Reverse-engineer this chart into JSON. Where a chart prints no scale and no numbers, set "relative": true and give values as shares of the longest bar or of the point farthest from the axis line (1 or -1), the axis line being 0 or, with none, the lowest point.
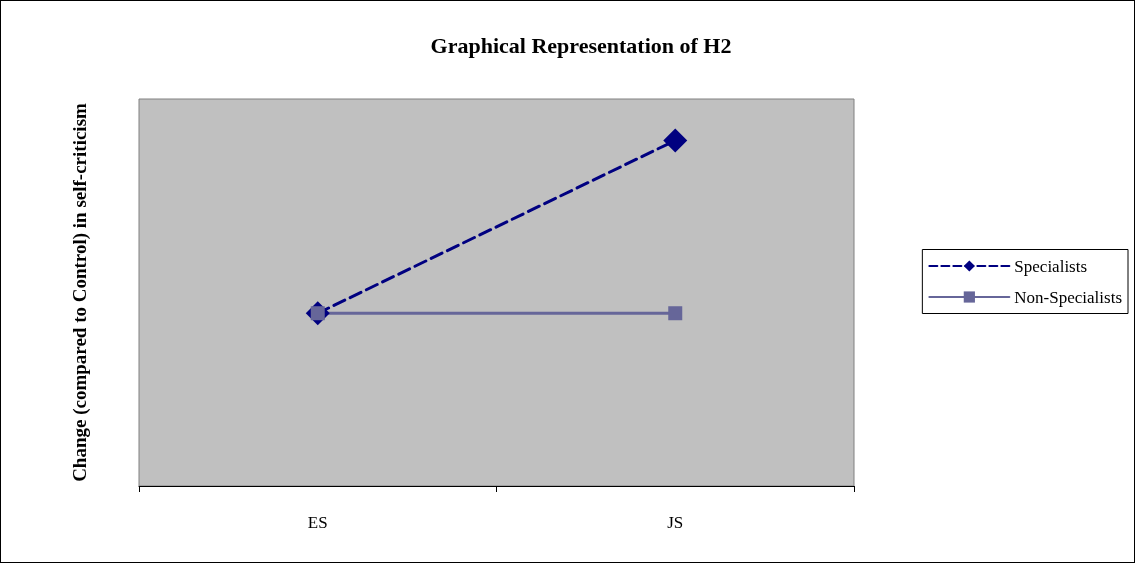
{
  "chart_data": {
    "type": "line",
    "title": "Graphical Representation of H2",
    "ylabel": "Change (compared to Control) in self-criticism",
    "categories": [
      "ES",
      "JS"
    ],
    "relative": true,
    "legend": "right",
    "grid": false,
    "series": [
      {
        "name": "Specialists",
        "color": "#000080",
        "values": [
          0.5,
          1
        ],
        "marker": "diamond",
        "line_style": "dashed"
      },
      {
        "name": "Non-Specialists",
        "color": "#666699",
        "values": [
          0.5,
          0.5
        ],
        "marker": "square",
        "line_style": "solid"
      }
    ]
  }
}
